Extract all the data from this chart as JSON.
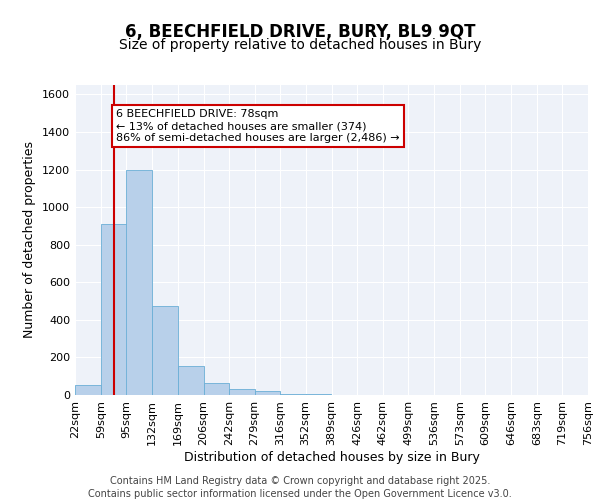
{
  "title_line1": "6, BEECHFIELD DRIVE, BURY, BL9 9QT",
  "title_line2": "Size of property relative to detached houses in Bury",
  "xlabel": "Distribution of detached houses by size in Bury",
  "ylabel": "Number of detached properties",
  "bin_edges": [
    22,
    59,
    95,
    132,
    169,
    206,
    242,
    279,
    316,
    352,
    389,
    426,
    462,
    499,
    536,
    573,
    609,
    646,
    683,
    719,
    756
  ],
  "bin_labels": [
    "22sqm",
    "59sqm",
    "95sqm",
    "132sqm",
    "169sqm",
    "206sqm",
    "242sqm",
    "279sqm",
    "316sqm",
    "352sqm",
    "389sqm",
    "426sqm",
    "462sqm",
    "499sqm",
    "536sqm",
    "573sqm",
    "609sqm",
    "646sqm",
    "683sqm",
    "719sqm",
    "756sqm"
  ],
  "counts": [
    55,
    910,
    1200,
    475,
    155,
    65,
    30,
    20,
    5,
    5,
    0,
    0,
    0,
    0,
    0,
    0,
    0,
    0,
    0,
    0
  ],
  "bar_color": "#b8d0ea",
  "bar_edge_color": "#6aaed6",
  "property_line_x": 78,
  "property_line_color": "#cc0000",
  "annotation_line1": "6 BEECHFIELD DRIVE: 78sqm",
  "annotation_line2": "← 13% of detached houses are smaller (374)",
  "annotation_line3": "86% of semi-detached houses are larger (2,486) →",
  "annotation_box_color": "#cc0000",
  "ylim": [
    0,
    1650
  ],
  "yticks": [
    0,
    200,
    400,
    600,
    800,
    1000,
    1200,
    1400,
    1600
  ],
  "background_color": "#eef2f9",
  "grid_color": "#ffffff",
  "footer_line1": "Contains HM Land Registry data © Crown copyright and database right 2025.",
  "footer_line2": "Contains public sector information licensed under the Open Government Licence v3.0.",
  "title_fontsize": 12,
  "subtitle_fontsize": 10,
  "axis_label_fontsize": 9,
  "tick_fontsize": 8,
  "annotation_fontsize": 8,
  "footer_fontsize": 7
}
